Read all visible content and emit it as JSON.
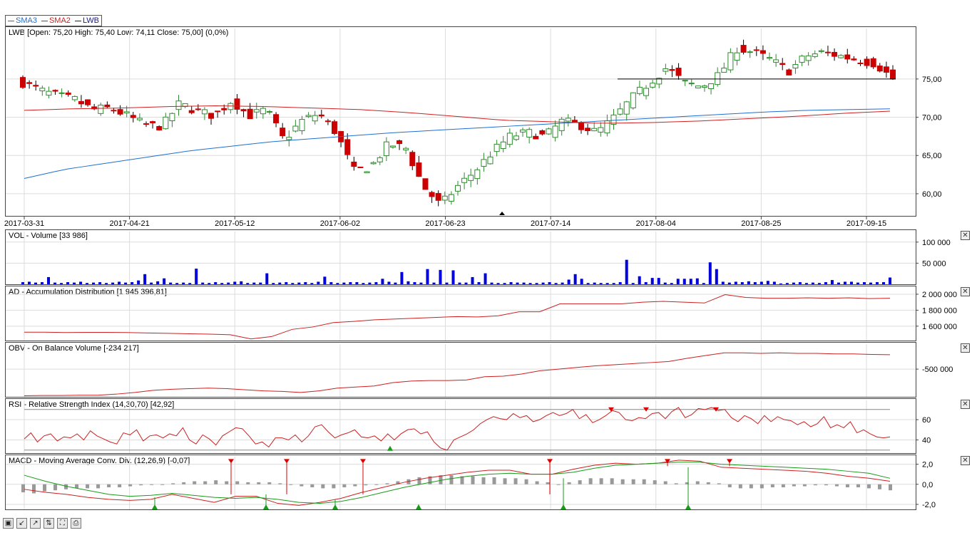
{
  "legend": {
    "items": [
      {
        "name": "SMA3",
        "color": "#1f6fd0"
      },
      {
        "name": "SMA2",
        "color": "#d02020"
      },
      {
        "name": "LWB",
        "color": "#1a1a90"
      }
    ]
  },
  "panels": {
    "price": {
      "label": "LWB [Open: 75,20  High: 75,40  Low: 74,11  Close: 75,00] (0,0%)"
    },
    "vol": {
      "label": "VOL - Volume [33 986]"
    },
    "ad": {
      "label": "AD - Accumulation Distribution [1 945 396,81]"
    },
    "obv": {
      "label": "OBV - On Balance Volume [-234 217]"
    },
    "rsi": {
      "label": "RSI - Relative Strength Index (14,30,70) [42,92]"
    },
    "macd": {
      "label": "MACD - Moving Average Conv. Div. (12,26,9) [-0,07]"
    }
  },
  "close_symbol": "✕",
  "toolbar": {
    "icons": [
      "save-icon",
      "zoom-in-icon",
      "zoom-out-icon",
      "reset-icon",
      "fit-icon",
      "print-icon"
    ]
  },
  "colors": {
    "up": "#2e8b2e",
    "down": "#cc0000",
    "volume": "#0000dd",
    "indicator": "#cc2020",
    "grid": "#dcdcdc"
  },
  "chart_data": [
    {
      "type": "candlestick",
      "title": "LWB [Open: 75,20  High: 75,40  Low: 74,11  Close: 75,00] (0,0%)",
      "x_dates": [
        "2017-03-31",
        "2017-04-21",
        "2017-05-12",
        "2017-06-02",
        "2017-06-23",
        "2017-07-14",
        "2017-08-04",
        "2017-08-25",
        "2017-09-15"
      ],
      "y_ticks": [
        "60,00",
        "65,00",
        "70,00",
        "75,00"
      ],
      "ylim": [
        57.2,
        81.6
      ],
      "close_path": [
        74.5,
        73.5,
        72.8,
        72.3,
        71.0,
        71.2,
        70.2,
        69.0,
        68.8,
        71.8,
        70.8,
        70.2,
        72.2,
        70.2,
        71.0,
        67.0,
        69.5,
        70.5,
        68.0,
        63.0,
        63.5,
        66.5,
        66.0,
        61.0,
        58.5,
        61.0,
        63.0,
        65.5,
        67.5,
        68.0,
        67.5,
        69.5,
        69.0,
        68.0,
        70.0,
        72.5,
        74.5,
        76.5,
        74.5,
        74.0,
        75.5,
        79.0,
        78.5,
        77.5,
        76.0,
        78.0,
        78.5,
        78.0,
        77.5,
        77.0,
        75.0
      ],
      "sma3_path": [
        62.0,
        63.2,
        64.0,
        64.8,
        65.6,
        66.2,
        66.8,
        67.2,
        67.6,
        68.0,
        68.3,
        68.6,
        68.9,
        69.2,
        69.5,
        69.8,
        70.1,
        70.4,
        70.7,
        70.9,
        71.0,
        71.1
      ],
      "sma2_path": [
        70.9,
        71.1,
        71.2,
        71.4,
        71.5,
        71.4,
        71.2,
        71.0,
        70.6,
        70.1,
        69.6,
        69.4,
        69.2,
        69.3,
        69.5,
        69.8,
        70.1,
        70.5,
        70.8
      ],
      "reference_line": 75.0
    },
    {
      "type": "bar",
      "title": "VOL - Volume [33 986]",
      "y_ticks": [
        "50 000",
        "100 000"
      ],
      "ylim": [
        0,
        125000
      ],
      "values": [
        5,
        6,
        4,
        5,
        17,
        4,
        3,
        5,
        4,
        6,
        3,
        4,
        5,
        3,
        4,
        6,
        4,
        5,
        9,
        24,
        4,
        7,
        14,
        4,
        3,
        4,
        3,
        37,
        4,
        3,
        5,
        3,
        4,
        6,
        7,
        3,
        4,
        4,
        26,
        3,
        4,
        5,
        3,
        4,
        5,
        3,
        6,
        18,
        5,
        3,
        4,
        5,
        5,
        3,
        4,
        5,
        13,
        6,
        4,
        29,
        7,
        5,
        4,
        36,
        4,
        34,
        4,
        33,
        4,
        4,
        17,
        5,
        26,
        4,
        3,
        3,
        5,
        4,
        4,
        3,
        3,
        4,
        5,
        3,
        4,
        11,
        24,
        13,
        3,
        4,
        3,
        3,
        3,
        5,
        58,
        3,
        19,
        5,
        15,
        15,
        4,
        3,
        13,
        13,
        13,
        14,
        3,
        52,
        36,
        6,
        4,
        6,
        5,
        7,
        5,
        6,
        8,
        6,
        2,
        3,
        4,
        5,
        3,
        4,
        3,
        5,
        10,
        4,
        6,
        6,
        4,
        5,
        4,
        5,
        5,
        16
      ]
    },
    {
      "type": "line",
      "title": "AD - Accumulation Distribution [1 945 396,81]",
      "y_ticks": [
        "1 600 000",
        "1 800 000",
        "2 000 000"
      ],
      "ylim": [
        1420000,
        2080000
      ],
      "values": [
        1525000,
        1525000,
        1520000,
        1523000,
        1523000,
        1520000,
        1515000,
        1510000,
        1505000,
        1500000,
        1492000,
        1440000,
        1470000,
        1560000,
        1590000,
        1645000,
        1660000,
        1680000,
        1690000,
        1700000,
        1710000,
        1720000,
        1715000,
        1730000,
        1780000,
        1780000,
        1880000,
        1880000,
        1880000,
        1880000,
        1900000,
        1910000,
        1900000,
        1890000,
        1995000,
        1960000,
        1950000,
        1950000,
        1955000,
        1950000,
        1955000,
        1945000,
        1950000
      ]
    },
    {
      "type": "line",
      "title": "OBV - On Balance Volume [-234 217]",
      "y_ticks": [
        "-500 000"
      ],
      "ylim": [
        -1010000,
        -40000
      ],
      "values": [
        -990000,
        -985000,
        -985000,
        -980000,
        -980000,
        -960000,
        -930000,
        -890000,
        -870000,
        -860000,
        -850000,
        -860000,
        -880000,
        -900000,
        -910000,
        -930000,
        -900000,
        -850000,
        -830000,
        -810000,
        -750000,
        -720000,
        -710000,
        -710000,
        -700000,
        -640000,
        -630000,
        -590000,
        -530000,
        -500000,
        -470000,
        -440000,
        -420000,
        -400000,
        -380000,
        -360000,
        -300000,
        -250000,
        -200000,
        -200000,
        -210000,
        -200000,
        -210000,
        -210000,
        -220000,
        -220000,
        -230000,
        -234217
      ]
    },
    {
      "type": "line",
      "title": "RSI - Relative Strength Index (14,30,70) [42,92]",
      "y_ticks": [
        "40",
        "60"
      ],
      "ylim": [
        27,
        79
      ],
      "levels": [
        30,
        70
      ],
      "values": [
        41,
        47,
        38,
        44,
        46,
        39,
        43,
        42,
        46,
        40,
        49,
        44,
        41,
        38,
        36,
        47,
        45,
        50,
        39,
        44,
        45,
        42,
        46,
        44,
        52,
        40,
        36,
        45,
        41,
        35,
        44,
        48,
        52,
        51,
        44,
        36,
        38,
        33,
        42,
        42,
        40,
        45,
        38,
        44,
        53,
        55,
        48,
        42,
        45,
        47,
        50,
        43,
        42,
        44,
        39,
        46,
        40,
        46,
        50,
        51,
        46,
        48,
        38,
        32,
        30,
        40,
        43,
        46,
        50,
        56,
        60,
        63,
        61,
        60,
        66,
        62,
        64,
        58,
        60,
        64,
        67,
        64,
        66,
        70,
        61,
        65,
        57,
        60,
        64,
        69,
        67,
        60,
        59,
        62,
        61,
        66,
        67,
        61,
        68,
        72,
        62,
        65,
        71,
        70,
        72,
        69,
        70,
        62,
        58,
        64,
        61,
        56,
        64,
        58,
        63,
        60,
        59,
        55,
        58,
        53,
        56,
        63,
        52,
        55,
        52,
        58,
        47,
        50,
        46,
        43,
        42,
        43
      ]
    },
    {
      "type": "line",
      "title": "MACD - Moving Average Conv. Div. (12,26,9) [-0,07]",
      "y_ticks": [
        "-2,0",
        "0,0",
        "2,0"
      ],
      "ylim": [
        -2.5,
        2.75
      ],
      "series": [
        {
          "values": [
            -0.5,
            -0.8,
            -1.0,
            -1.3,
            -1.5,
            -1.6,
            -1.5,
            -1.0,
            -1.4,
            -1.8,
            -1.2,
            -1.2,
            -1.9,
            -2.1,
            -1.8,
            -1.4,
            -0.8,
            -0.3,
            0.2,
            0.6,
            0.9,
            1.2,
            1.4,
            1.4,
            1.0,
            1.0,
            1.5,
            1.9,
            2.1,
            2.0,
            2.1,
            2.4,
            2.3,
            1.7,
            1.6,
            1.5,
            1.4,
            1.3,
            1.1,
            0.8,
            0.6,
            0.3
          ]
        },
        {
          "values": [
            0.9,
            0.3,
            -0.2,
            -0.6,
            -1.0,
            -1.2,
            -1.1,
            -0.9,
            -1.1,
            -1.3,
            -1.4,
            -1.3,
            -1.5,
            -1.8,
            -1.9,
            -1.7,
            -1.3,
            -0.8,
            -0.3,
            0.1,
            0.5,
            0.8,
            1.0,
            1.1,
            1.0,
            1.0,
            1.2,
            1.6,
            1.9,
            2.0,
            2.1,
            2.2,
            2.2,
            2.0,
            1.9,
            1.8,
            1.7,
            1.6,
            1.5,
            1.3,
            1.1,
            0.6
          ]
        }
      ],
      "histogram": [
        -0.8,
        -0.9,
        -0.7,
        -0.6,
        -0.5,
        -0.4,
        -0.4,
        -0.4,
        -0.3,
        -0.3,
        -0.2,
        -0.1,
        0,
        0,
        0.1,
        0.2,
        0.3,
        0.3,
        0.4,
        0.3,
        0.3,
        0.2,
        0.2,
        0.2,
        0.1,
        0,
        -0.2,
        -0.3,
        -0.4,
        -0.4,
        -0.3,
        -0.2,
        -0.1,
        0,
        0.1,
        0.3,
        0.5,
        0.7,
        0.8,
        0.9,
        0.9,
        0.8,
        0.8,
        0.7,
        0.7,
        0.6,
        0.6,
        0.5,
        0.3,
        0.2,
        0,
        0.2,
        0.4,
        0.6,
        0.6,
        0.6,
        0.5,
        0.5,
        0.5,
        0.4,
        0.3,
        0.1,
        0.2,
        0.3,
        0.2,
        0.1,
        -0.3,
        -0.4,
        -0.4,
        -0.4,
        -0.3,
        -0.3,
        -0.2,
        -0.2,
        -0.1,
        -0.1,
        -0.2,
        -0.3,
        -0.3,
        -0.4,
        -0.5,
        -0.6
      ]
    }
  ]
}
